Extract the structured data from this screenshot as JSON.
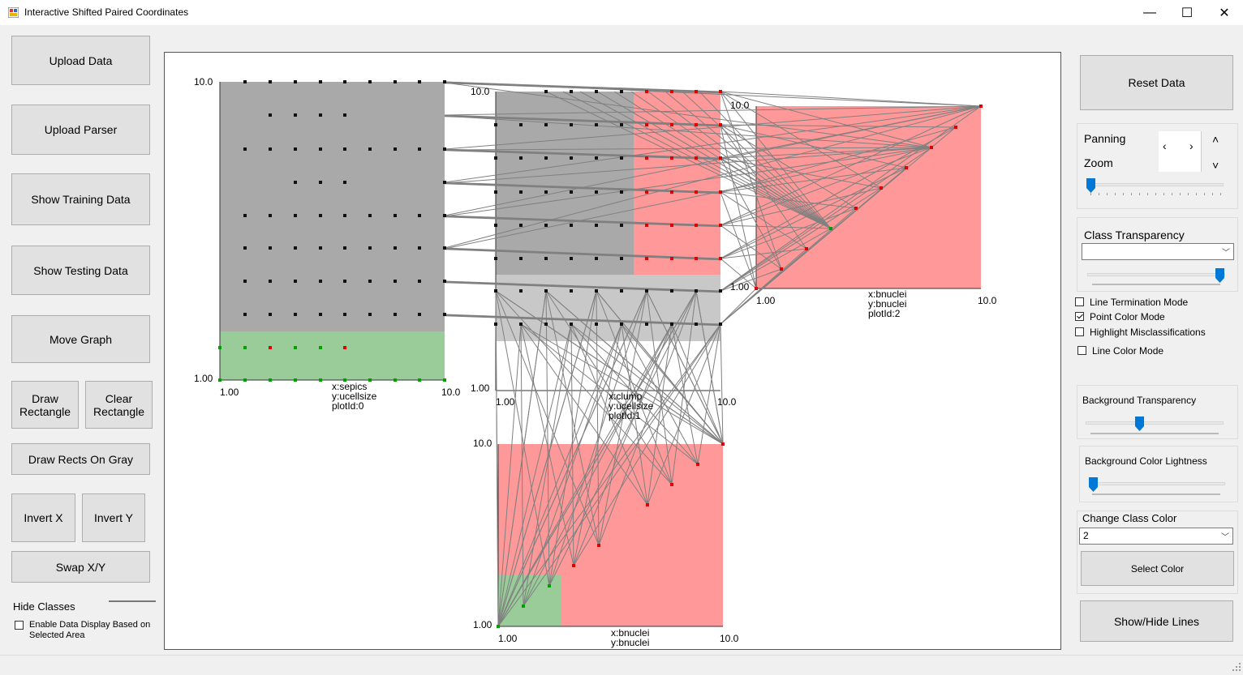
{
  "window": {
    "title": "Interactive Shifted Paired Coordinates",
    "minimize": "—",
    "maximize": "☐",
    "close": "✕"
  },
  "left_panel": {
    "upload_data": "Upload Data",
    "upload_parser": "Upload Parser",
    "show_training": "Show Training Data",
    "show_testing": "Show Testing Data",
    "move_graph": "Move Graph",
    "draw_rectangle": "Draw Rectangle",
    "clear_rectangle": "Clear Rectangle",
    "draw_rects_on_gray": "Draw Rects On Gray",
    "invert_x": "Invert X",
    "invert_y": "Invert Y",
    "swap_xy": "Swap X/Y",
    "hide_classes": "Hide Classes",
    "enable_display": "Enable Data Display Based on Selected Area"
  },
  "right_panel": {
    "reset_data": "Reset Data",
    "panning": "Panning",
    "zoom": "Zoom",
    "class_transparency": "Class Transparency",
    "line_termination_mode": "Line Termination Mode",
    "point_color_mode": "Point Color Mode",
    "highlight_misclassifications": "Highlight Misclassifications",
    "line_color_mode": "Line Color Mode",
    "background_transparency": "Background Transparency",
    "background_lightness": "Background Color Lightness",
    "change_class_color": "Change Class Color",
    "class_select_value": "2",
    "select_color": "Select Color",
    "show_hide_lines": "Show/Hide Lines",
    "checkboxes": {
      "line_termination": false,
      "point_color": true,
      "highlight_misclass": false,
      "line_color": false
    },
    "sliders": {
      "zoom": 0.0,
      "class_transparency": 1.0,
      "background_transparency": 0.4,
      "background_lightness": 0.0
    }
  },
  "colors": {
    "gray_region": "#a9a9a9",
    "light_gray_region": "#c8c8c8",
    "red_region": "#ff9999",
    "green_region": "#99cc99",
    "line": "#808080",
    "point_red": "#e00000",
    "point_green": "#00a000",
    "point_black": "#111111"
  },
  "plots": [
    {
      "id": "plot0",
      "x_attr": "x:sepics",
      "y_attr": "y:ucellsize",
      "plot_label": "plotId:0",
      "min_label": "1.00",
      "max_label": "10.0"
    },
    {
      "id": "plot1",
      "x_attr": "x:clump",
      "y_attr": "y:ucellsize",
      "plot_label": "plotId:1",
      "min_label": "1.00",
      "max_label": "10.0"
    },
    {
      "id": "plot2",
      "x_attr": "x:bnuclei",
      "y_attr": "y:bnuclei",
      "plot_label": "plotId:2",
      "min_label": "1.00",
      "max_label": "10.0"
    },
    {
      "id": "plot3",
      "x_attr": "x:bnuclei",
      "y_attr": "y:bnuclei",
      "plot_label": "",
      "min_label": "1.00",
      "max_label": "10.0"
    }
  ]
}
